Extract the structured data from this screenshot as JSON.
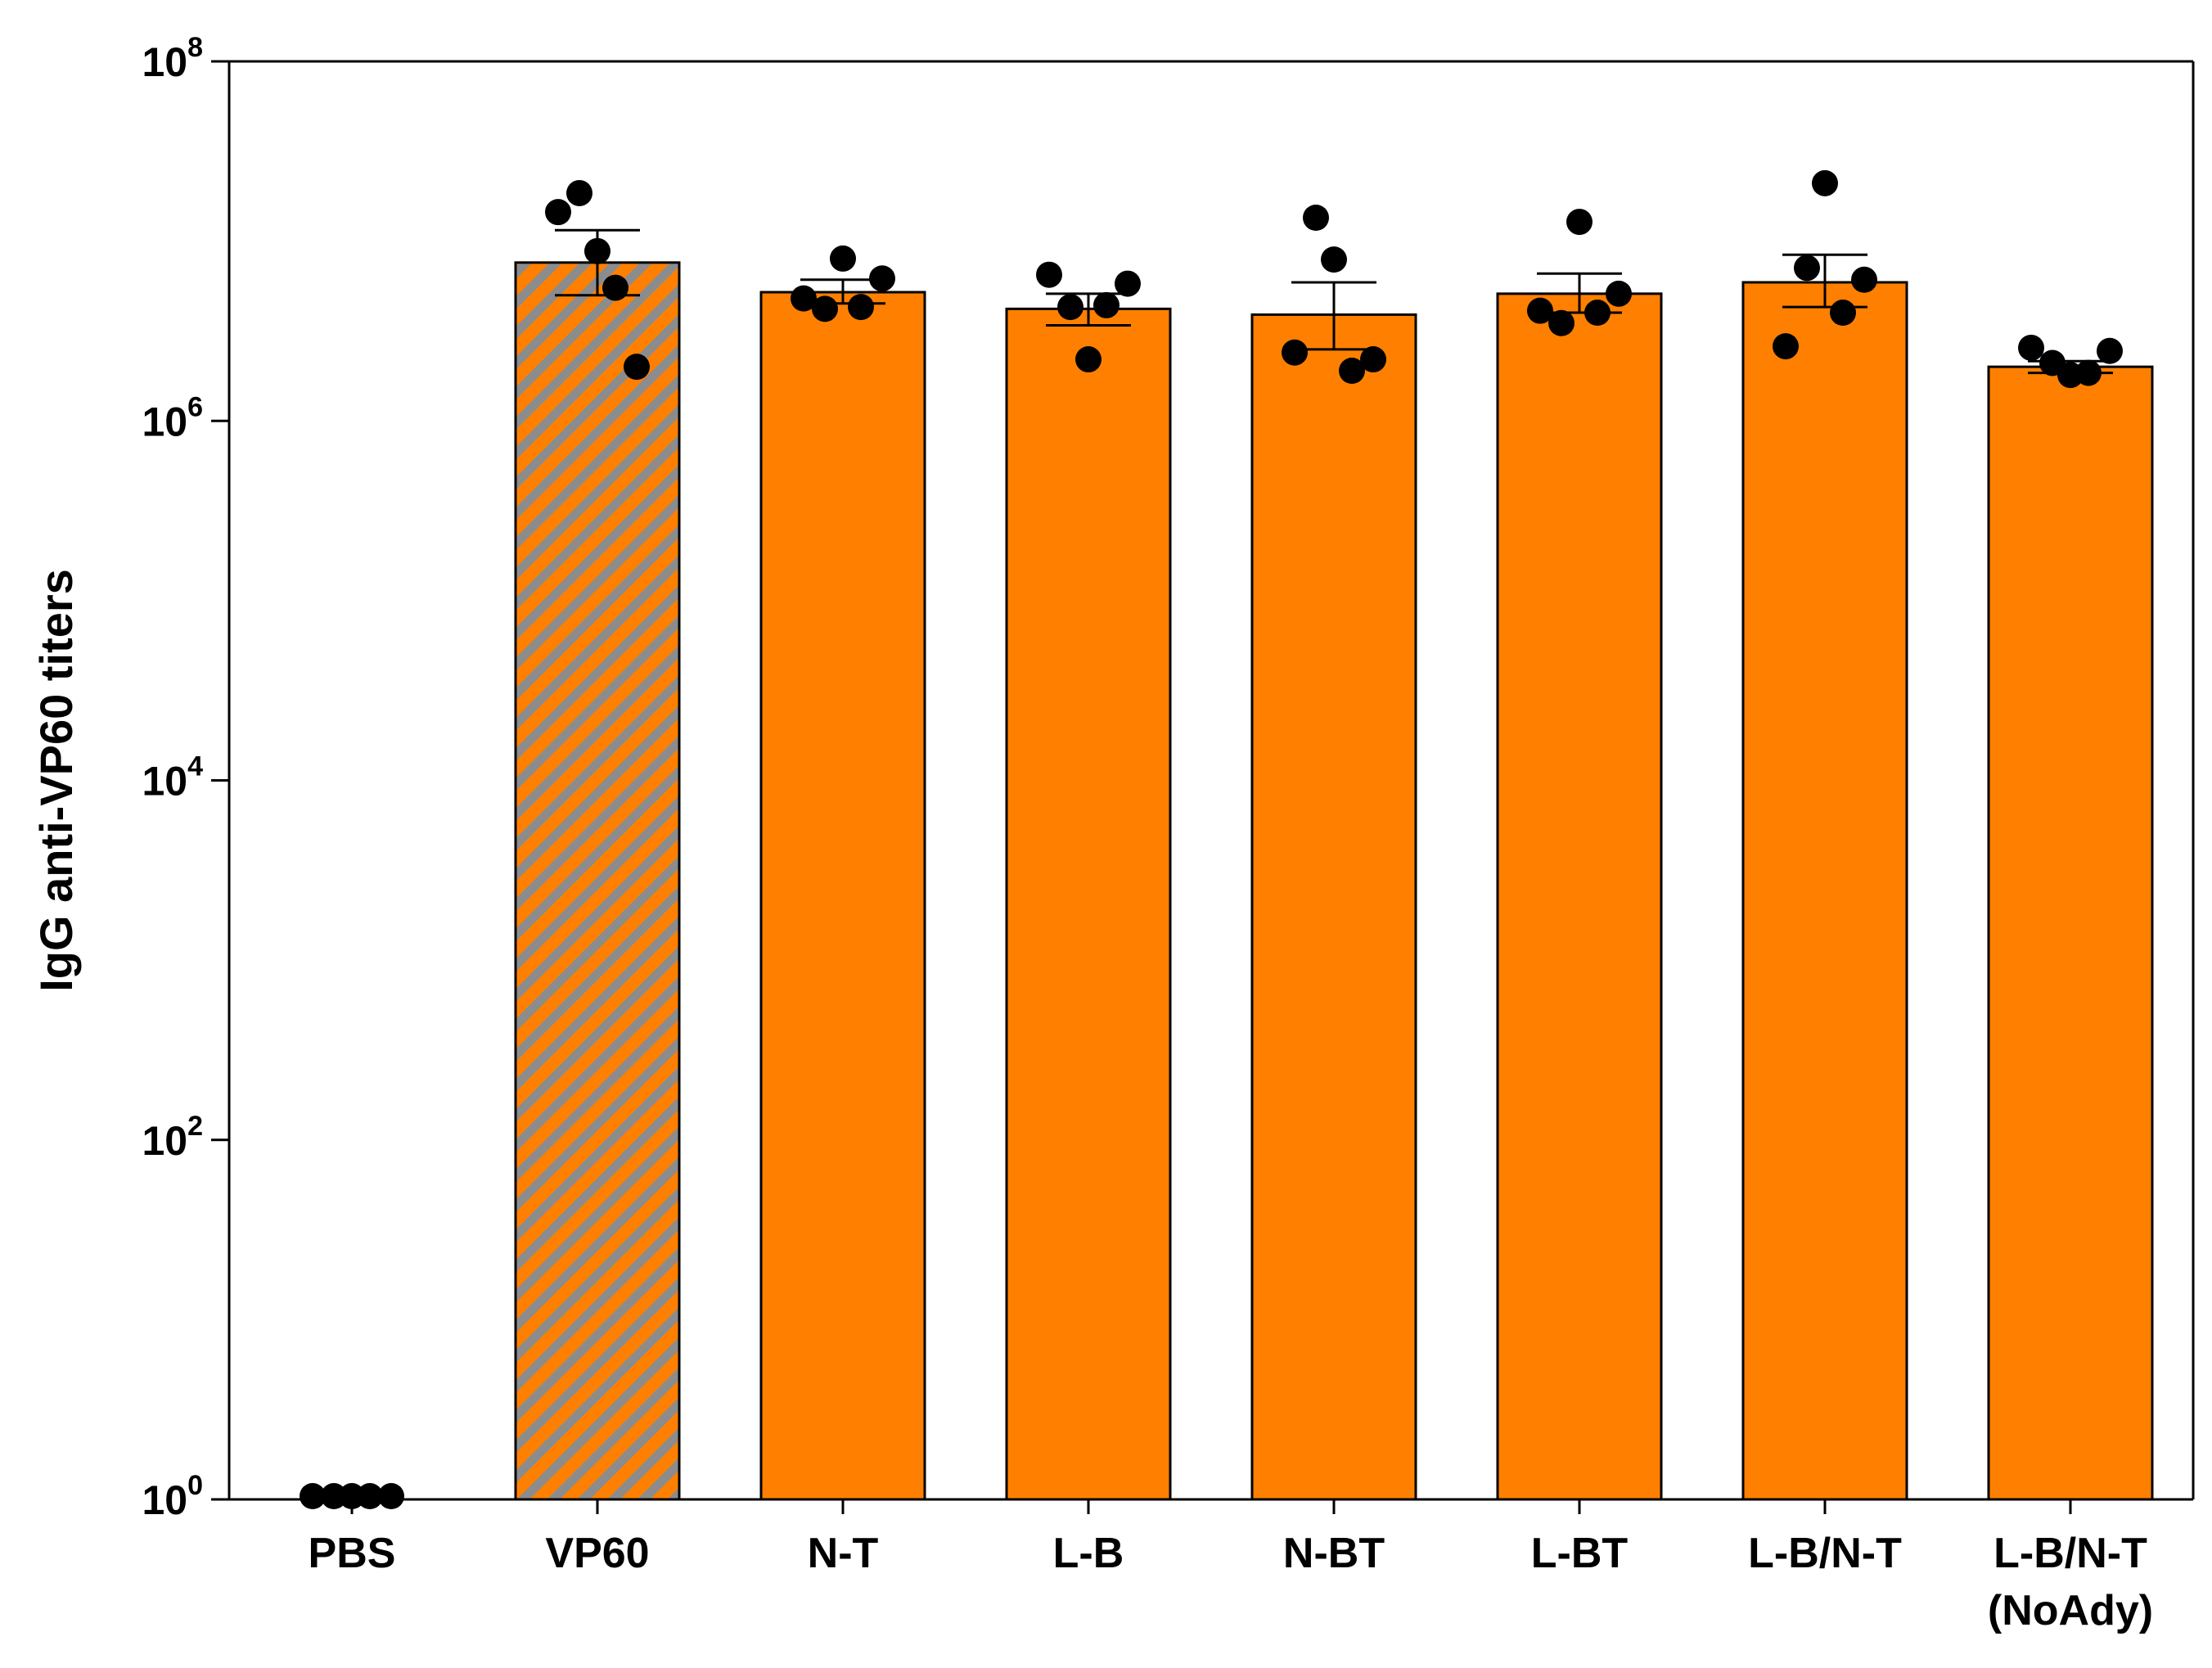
{
  "chart_data": {
    "type": "bar",
    "title": "",
    "xlabel": "",
    "ylabel": "IgG anti-VP60 titers",
    "yscale": "log10",
    "ylim": [
      1,
      100000000
    ],
    "grid": false,
    "yticks": [
      {
        "base": "10",
        "exp": "0"
      },
      {
        "base": "10",
        "exp": "2"
      },
      {
        "base": "10",
        "exp": "4"
      },
      {
        "base": "10",
        "exp": "6"
      },
      {
        "base": "10",
        "exp": "8"
      }
    ],
    "categories": [
      {
        "label": [
          "PBS"
        ],
        "mean": 1,
        "sem_low": 1,
        "sem_high": 1,
        "fill": "none",
        "points": [
          1,
          1,
          1,
          1,
          1
        ]
      },
      {
        "label": [
          "VP60"
        ],
        "mean": 7600000,
        "sem_low": 5000000,
        "sem_high": 11500000,
        "fill": "hatched",
        "points": [
          14500000,
          18500000,
          8800000,
          5500000,
          2000000
        ]
      },
      {
        "label": [
          "N-T"
        ],
        "mean": 5200000,
        "sem_low": 4500000,
        "sem_high": 6100000,
        "fill": "solid",
        "points": [
          4800000,
          4200000,
          8000000,
          4300000,
          6200000
        ]
      },
      {
        "label": [
          "L-B"
        ],
        "mean": 4200000,
        "sem_low": 3400000,
        "sem_high": 5100000,
        "fill": "solid",
        "points": [
          6500000,
          4300000,
          2200000,
          4400000,
          5800000
        ]
      },
      {
        "label": [
          "N-BT"
        ],
        "mean": 3900000,
        "sem_low": 2500000,
        "sem_high": 5900000,
        "fill": "solid",
        "points": [
          2400000,
          13500000,
          7900000,
          1900000,
          2200000
        ]
      },
      {
        "label": [
          "L-BT"
        ],
        "mean": 5100000,
        "sem_low": 4000000,
        "sem_high": 6600000,
        "fill": "solid",
        "points": [
          4100000,
          3500000,
          12800000,
          4000000,
          5100000
        ]
      },
      {
        "label": [
          "L-B/N-T"
        ],
        "mean": 5900000,
        "sem_low": 4300000,
        "sem_high": 8400000,
        "fill": "solid",
        "points": [
          2600000,
          7100000,
          21000000,
          4000000,
          6100000
        ]
      },
      {
        "label": [
          "L-B/N-T",
          "(NoAdy)"
        ],
        "mean": 2000000,
        "sem_low": 1850000,
        "sem_high": 2150000,
        "fill": "solid",
        "points": [
          2550000,
          2100000,
          1800000,
          1850000,
          2450000
        ]
      }
    ],
    "colors": {
      "bar_fill": "#ff8000",
      "hatch_stripe": "#8c8c8c",
      "outline": "#000000",
      "points": "#000000"
    }
  }
}
